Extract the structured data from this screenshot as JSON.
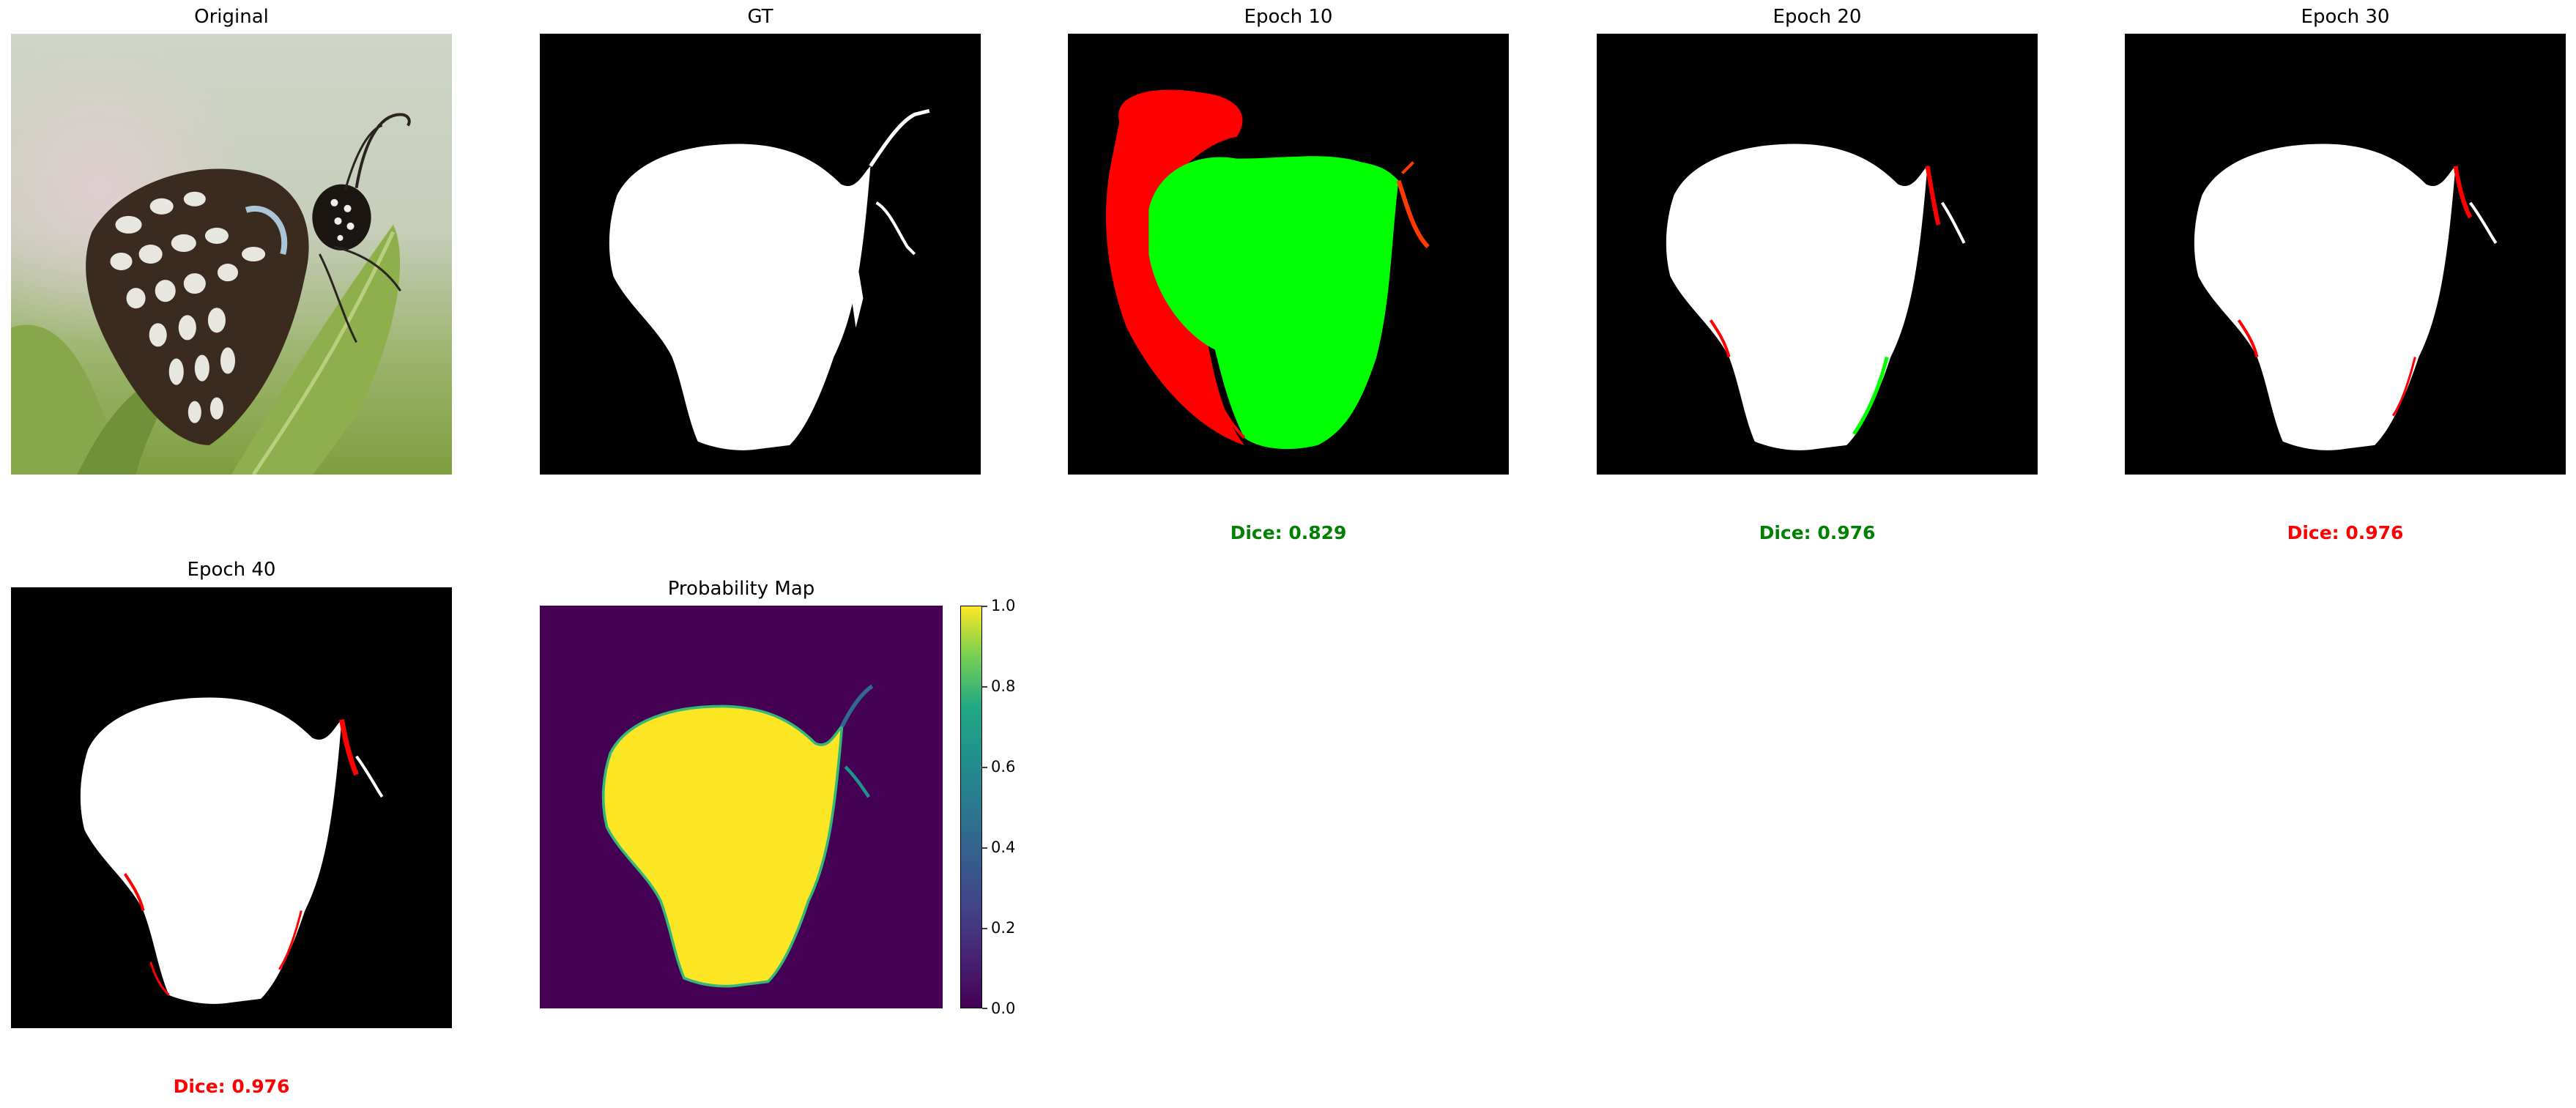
{
  "panels": {
    "original": {
      "title": "Original"
    },
    "gt": {
      "title": "GT"
    },
    "epoch10": {
      "title": "Epoch 10",
      "dice": "Dice: 0.829",
      "dice_color": "#008000"
    },
    "epoch20": {
      "title": "Epoch 20",
      "dice": "Dice: 0.976",
      "dice_color": "#008000"
    },
    "epoch30": {
      "title": "Epoch 30",
      "dice": "Dice: 0.976",
      "dice_color": "#ff0000"
    },
    "epoch40": {
      "title": "Epoch 40",
      "dice": "Dice: 0.976",
      "dice_color": "#ff0000"
    },
    "prob_map": {
      "title": "Probability Map"
    }
  },
  "colorbar": {
    "ticks": [
      "1.0",
      "0.8",
      "0.6",
      "0.4",
      "0.2",
      "0.0"
    ],
    "colormap": "viridis"
  },
  "colors": {
    "mask_fg": "#ffffff",
    "mask_bg": "#000000",
    "error_fp": "#ff0000",
    "error_fn": "#00ff00",
    "prob_low": "#440154",
    "prob_high": "#fde725"
  }
}
